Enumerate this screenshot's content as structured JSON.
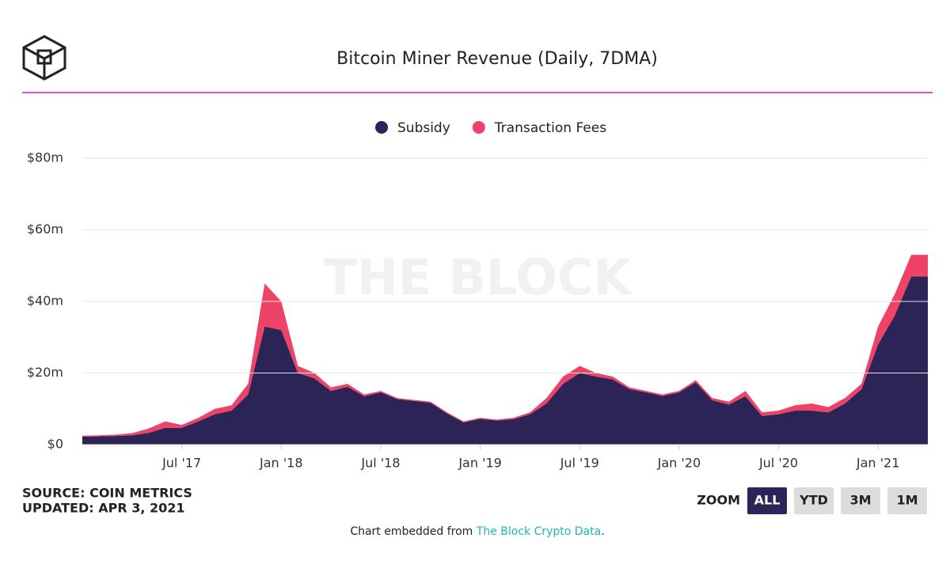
{
  "chart_data": {
    "type": "stacked_area",
    "title": "Bitcoin Miner Revenue (Daily, 7DMA)",
    "watermark": "THE BLOCK",
    "x": [
      "2017-01",
      "2017-02",
      "2017-03",
      "2017-04",
      "2017-05",
      "2017-06",
      "2017-07",
      "2017-08",
      "2017-09",
      "2017-10",
      "2017-11",
      "2017-12",
      "2018-01",
      "2018-02",
      "2018-03",
      "2018-04",
      "2018-05",
      "2018-06",
      "2018-07",
      "2018-08",
      "2018-09",
      "2018-10",
      "2018-11",
      "2018-12",
      "2019-01",
      "2019-02",
      "2019-03",
      "2019-04",
      "2019-05",
      "2019-06",
      "2019-07",
      "2019-08",
      "2019-09",
      "2019-10",
      "2019-11",
      "2019-12",
      "2020-01",
      "2020-02",
      "2020-03",
      "2020-04",
      "2020-05",
      "2020-06",
      "2020-07",
      "2020-08",
      "2020-09",
      "2020-10",
      "2020-11",
      "2020-12",
      "2021-01",
      "2021-02",
      "2021-03",
      "2021-04"
    ],
    "series": [
      {
        "name": "Subsidy",
        "color": "#2c2356",
        "values": [
          2.2,
          2.3,
          2.4,
          2.6,
          3.3,
          4.7,
          4.7,
          6.5,
          8.5,
          9.5,
          14,
          33,
          32,
          20,
          18.5,
          15,
          16.2,
          13.5,
          14.6,
          12.7,
          12.2,
          11.7,
          8.7,
          6.2,
          7.2,
          6.7,
          7.1,
          8.5,
          11.5,
          17,
          20,
          19,
          18.2,
          15.5,
          14.6,
          13.6,
          14.6,
          17.4,
          12.4,
          11.2,
          13.5,
          8,
          8.5,
          9.5,
          9.5,
          9,
          11.5,
          15.5,
          28,
          36,
          47,
          47
        ]
      },
      {
        "name": "Transaction Fees",
        "color": "#ee4266",
        "values": [
          0.3,
          0.3,
          0.4,
          0.6,
          1.2,
          1.8,
          0.8,
          1,
          1.5,
          1.5,
          3,
          12,
          8,
          2,
          1.5,
          1,
          0.8,
          0.5,
          0.4,
          0.3,
          0.3,
          0.3,
          0.3,
          0.3,
          0.3,
          0.3,
          0.4,
          0.5,
          1.5,
          2,
          2,
          1,
          0.8,
          0.5,
          0.4,
          0.4,
          0.4,
          0.6,
          0.6,
          0.8,
          1.5,
          1,
          1,
          1.5,
          2,
          1.5,
          1.5,
          1.5,
          5,
          6,
          6,
          6
        ]
      }
    ],
    "xticks": [
      {
        "value": "2017-07",
        "label": "Jul '17"
      },
      {
        "value": "2018-01",
        "label": "Jan '18"
      },
      {
        "value": "2018-07",
        "label": "Jul '18"
      },
      {
        "value": "2019-01",
        "label": "Jan '19"
      },
      {
        "value": "2019-07",
        "label": "Jul '19"
      },
      {
        "value": "2020-01",
        "label": "Jan '20"
      },
      {
        "value": "2020-07",
        "label": "Jul '20"
      },
      {
        "value": "2021-01",
        "label": "Jan '21"
      }
    ],
    "ylim": [
      0,
      80
    ],
    "yticks": [
      {
        "value": 0,
        "label": "$0"
      },
      {
        "value": 20,
        "label": "$20m"
      },
      {
        "value": 40,
        "label": "$40m"
      },
      {
        "value": 60,
        "label": "$60m"
      },
      {
        "value": 80,
        "label": "$80m"
      }
    ],
    "grid": true,
    "source": "SOURCE: COIN METRICS",
    "updated": "UPDATED: APR 3, 2021",
    "zoom_label": "ZOOM",
    "zoom_buttons": [
      "ALL",
      "YTD",
      "3M",
      "1M"
    ],
    "footer": {
      "text": "Chart embedded from ",
      "link": "The Block Crypto Data",
      "end": "."
    }
  }
}
